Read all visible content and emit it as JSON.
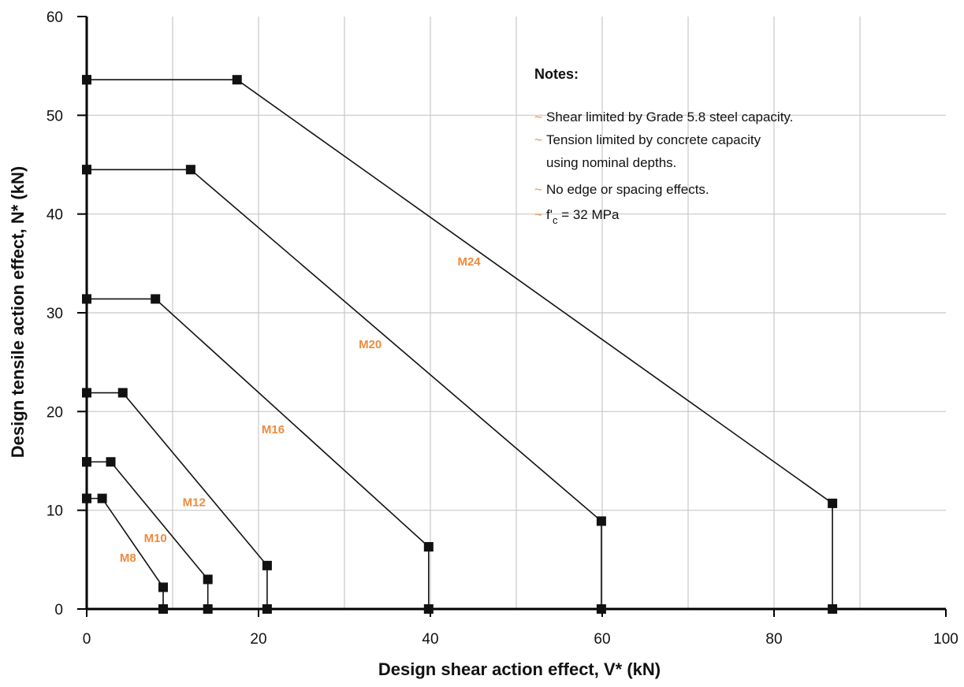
{
  "colors": {
    "accent": "#f08a3c",
    "line": "#111111",
    "grid": "#c8c8c8",
    "axis": "#000000"
  },
  "chart_data": {
    "type": "line",
    "title": "",
    "xlabel": "Design shear action effect, V* (kN)",
    "ylabel": "Design tensile action effect, N* (kN)",
    "xlim": [
      0,
      100
    ],
    "ylim": [
      0,
      60
    ],
    "xticks": [
      0,
      20,
      40,
      60,
      80,
      100
    ],
    "yticks": [
      0,
      10,
      20,
      30,
      40,
      50,
      60
    ],
    "grid": true,
    "series": [
      {
        "name": "M8",
        "label_at": [
          4.8,
          4.8
        ],
        "points": [
          [
            0,
            11.2
          ],
          [
            1.8,
            11.2
          ],
          [
            8.9,
            2.2
          ],
          [
            8.9,
            0
          ]
        ]
      },
      {
        "name": "M10",
        "label_at": [
          8,
          6.8
        ],
        "points": [
          [
            0,
            14.9
          ],
          [
            2.8,
            14.9
          ],
          [
            14.1,
            3.0
          ],
          [
            14.1,
            0
          ]
        ]
      },
      {
        "name": "M12",
        "label_at": [
          12.5,
          10.4
        ],
        "points": [
          [
            0,
            21.9
          ],
          [
            4.2,
            21.9
          ],
          [
            21.0,
            4.4
          ],
          [
            21.0,
            0
          ]
        ]
      },
      {
        "name": "M16",
        "label_at": [
          21.7,
          17.8
        ],
        "points": [
          [
            0,
            31.4
          ],
          [
            8.0,
            31.4
          ],
          [
            39.8,
            6.3
          ],
          [
            39.8,
            0
          ]
        ]
      },
      {
        "name": "M20",
        "label_at": [
          33,
          26.4
        ],
        "points": [
          [
            0,
            44.5
          ],
          [
            12.1,
            44.5
          ],
          [
            59.9,
            8.9
          ],
          [
            59.9,
            0
          ]
        ]
      },
      {
        "name": "M24",
        "label_at": [
          44.5,
          34.8
        ],
        "points": [
          [
            0,
            53.6
          ],
          [
            17.5,
            53.6
          ],
          [
            86.8,
            10.7
          ],
          [
            86.8,
            0
          ]
        ]
      }
    ]
  },
  "notes": {
    "title": "Notes:",
    "tilde": "~",
    "items": [
      "Shear limited by Grade 5.8 steel capacity.",
      "Tension limited by concrete capacity",
      "using nominal depths.",
      "No edge or spacing effects."
    ],
    "fc_prefix": "f'",
    "fc_sub": "c",
    "fc_suffix": " = 32 MPa"
  }
}
